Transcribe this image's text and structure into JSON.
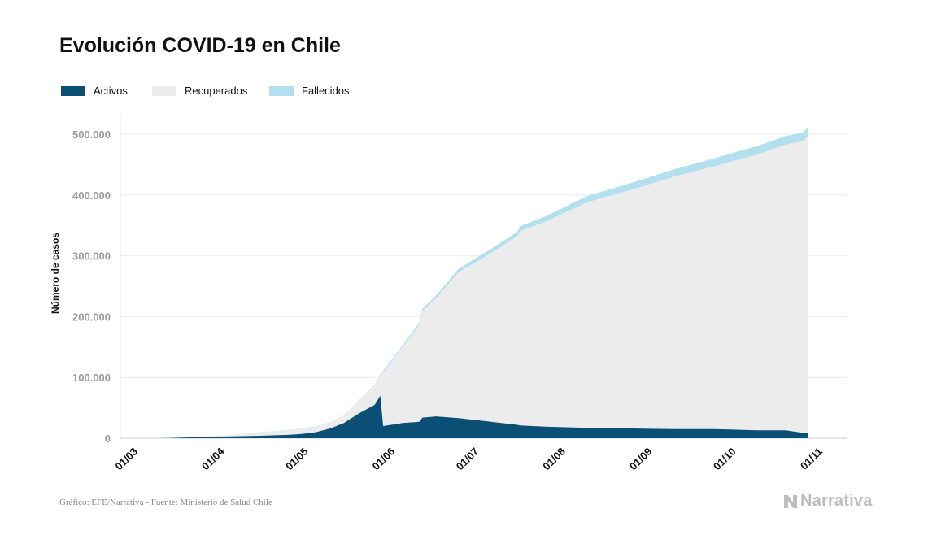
{
  "chart_data": {
    "type": "area",
    "title": "Evolución COVID-19 en Chile",
    "ylabel": "Número de casos",
    "xlabel": "",
    "ylim": [
      0,
      530000
    ],
    "y_ticks": [
      0,
      100000,
      200000,
      300000,
      400000,
      500000
    ],
    "y_tick_labels": [
      "0",
      "100.000",
      "200.000",
      "300.000",
      "400.000",
      "500.000"
    ],
    "x_tick_labels": [
      "01/03",
      "01/04",
      "01/05",
      "01/06",
      "01/07",
      "01/08",
      "01/09",
      "01/10",
      "01/11"
    ],
    "x_range": [
      "2020-03-01",
      "2020-11-01"
    ],
    "stacked": true,
    "grid": "horizontal",
    "legend_position": "top-left",
    "dates": [
      "2020-03-01",
      "2020-03-15",
      "2020-03-31",
      "2020-04-10",
      "2020-04-20",
      "2020-04-30",
      "2020-05-05",
      "2020-05-10",
      "2020-05-15",
      "2020-05-20",
      "2020-05-25",
      "2020-05-31",
      "2020-06-02",
      "2020-06-03",
      "2020-06-10",
      "2020-06-16",
      "2020-06-17",
      "2020-06-22",
      "2020-06-30",
      "2020-07-10",
      "2020-07-21",
      "2020-07-22",
      "2020-07-31",
      "2020-08-15",
      "2020-08-31",
      "2020-09-15",
      "2020-09-30",
      "2020-10-15",
      "2020-10-25",
      "2020-10-31",
      "2020-11-02"
    ],
    "series": [
      {
        "name": "Activos",
        "color": "#0b4f75",
        "values": [
          0,
          0,
          2000,
          3000,
          4000,
          5500,
          7000,
          10000,
          16000,
          25000,
          40000,
          55000,
          70000,
          20000,
          25000,
          27000,
          34000,
          36000,
          33000,
          28000,
          22000,
          21000,
          19000,
          17000,
          16000,
          15000,
          15000,
          13000,
          13000,
          9000,
          8000
        ]
      },
      {
        "name": "Recuperados",
        "color": "#ececec",
        "values": [
          0,
          0,
          500,
          2500,
          6000,
          8000,
          9000,
          9500,
          10000,
          12000,
          20000,
          32000,
          35000,
          88000,
          125000,
          160000,
          175000,
          195000,
          240000,
          272000,
          310000,
          320000,
          337000,
          371000,
          393000,
          415000,
          433000,
          454000,
          470000,
          479000,
          488000
        ]
      },
      {
        "name": "Fallecidos",
        "color": "#b2e0ef",
        "values": [
          0,
          0,
          50,
          100,
          150,
          250,
          300,
          350,
          450,
          550,
          800,
          1000,
          1200,
          2500,
          3000,
          3400,
          3500,
          4000,
          5500,
          6700,
          7300,
          7800,
          8700,
          10200,
          11000,
          12000,
          12900,
          13700,
          14100,
          14400,
          14700
        ]
      }
    ]
  },
  "footer": {
    "source": "Gráfico: EFE/Narrativa - Fuente: Ministerio de Salud Chile",
    "brand": "Narrativa"
  }
}
